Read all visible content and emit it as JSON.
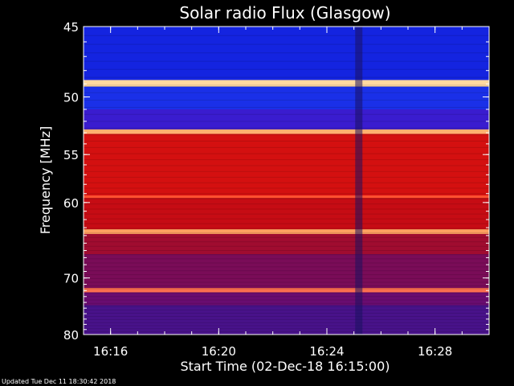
{
  "chart_data": {
    "type": "heatmap",
    "title": "Solar radio Flux (Glasgow)",
    "xlabel": "Start Time (02-Dec-18 16:15:00)",
    "ylabel": "Frequency [MHz]",
    "x_ticks": [
      "16:16",
      "16:20",
      "16:24",
      "16:28"
    ],
    "y_ticks": [
      "45",
      "50",
      "55",
      "60",
      "70",
      "80"
    ],
    "y_scale": "reciprocal",
    "ylim": [
      45,
      80
    ],
    "xlim": [
      "16:15:00",
      "16:30:00"
    ],
    "bands": [
      {
        "f0": 45.0,
        "f1": 48.7,
        "color": "#1424e0"
      },
      {
        "f0": 48.7,
        "f1": 49.2,
        "color": "#ffd9a0"
      },
      {
        "f0": 49.2,
        "f1": 51.0,
        "color": "#1a30e8"
      },
      {
        "f0": 51.0,
        "f1": 52.7,
        "color": "#3a1ccf"
      },
      {
        "f0": 52.7,
        "f1": 53.1,
        "color": "#ffb070"
      },
      {
        "f0": 53.1,
        "f1": 59.2,
        "color": "#d41010"
      },
      {
        "f0": 59.2,
        "f1": 59.5,
        "color": "#ff5030"
      },
      {
        "f0": 59.5,
        "f1": 63.2,
        "color": "#c60c14"
      },
      {
        "f0": 63.2,
        "f1": 63.8,
        "color": "#ffa060"
      },
      {
        "f0": 63.8,
        "f1": 66.5,
        "color": "#a00c30"
      },
      {
        "f0": 66.5,
        "f1": 71.6,
        "color": "#7a0c58"
      },
      {
        "f0": 71.6,
        "f1": 72.3,
        "color": "#ff7050"
      },
      {
        "f0": 72.3,
        "f1": 74.5,
        "color": "#6a0c70"
      },
      {
        "f0": 74.5,
        "f1": 80.0,
        "color": "#48128a"
      }
    ],
    "dark_streak_time": "16:25:10",
    "grid": false
  },
  "footer": "Updated Tue Dec 11 18:30:42 2018",
  "colors": {
    "background": "#000000",
    "axes": "#ffffff"
  }
}
